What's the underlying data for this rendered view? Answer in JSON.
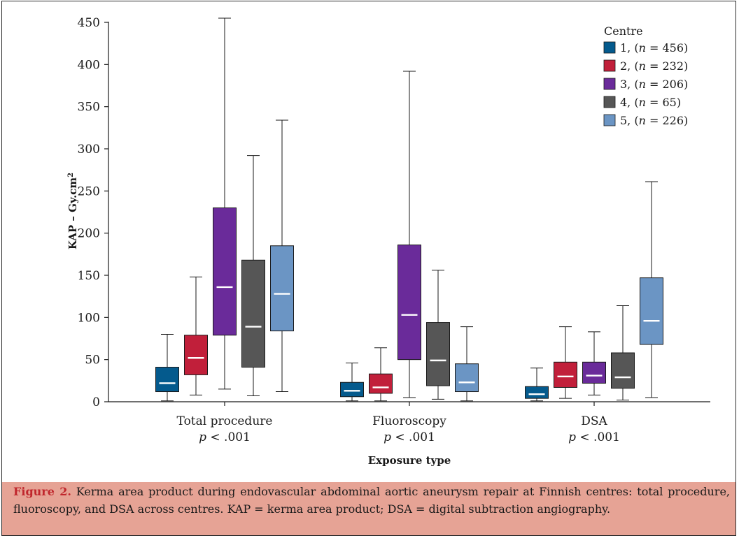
{
  "chart_data": {
    "type": "boxplot",
    "title": "",
    "xlabel": "Exposure type",
    "ylabel": "KAP – Gy.cm",
    "ylabel_superscript": "2",
    "ylim": [
      0,
      450
    ],
    "yticks": [
      0,
      50,
      100,
      150,
      200,
      250,
      300,
      350,
      400,
      450
    ],
    "grid": false,
    "legend": {
      "title": "Centre",
      "placement": "top-right",
      "entries": [
        {
          "num": "1,",
          "n": "456"
        },
        {
          "num": "2,",
          "n": "232"
        },
        {
          "num": "3,",
          "n": "206"
        },
        {
          "num": "4,",
          "n": "65"
        },
        {
          "num": "5,",
          "n": "226"
        }
      ]
    },
    "categories": [
      {
        "label": "Total procedure",
        "p_label": "p",
        "p_value": "< .001"
      },
      {
        "label": "Fluoroscopy",
        "p_label": "p",
        "p_value": "< .001"
      },
      {
        "label": "DSA",
        "p_label": "p",
        "p_value": "< .001"
      }
    ],
    "series": [
      {
        "name": "1, (n = 456)",
        "color": "#045a8d",
        "boxes": [
          {
            "min": 1,
            "q1": 12,
            "median": 22,
            "q3": 41,
            "max": 80
          },
          {
            "min": 1,
            "q1": 6,
            "median": 13,
            "q3": 23,
            "max": 46
          },
          {
            "min": 1,
            "q1": 4,
            "median": 9,
            "q3": 18,
            "max": 40
          }
        ]
      },
      {
        "name": "2, (n = 232)",
        "color": "#c11f3a",
        "boxes": [
          {
            "min": 8,
            "q1": 32,
            "median": 52,
            "q3": 79,
            "max": 148
          },
          {
            "min": 1,
            "q1": 10,
            "median": 17,
            "q3": 33,
            "max": 64
          },
          {
            "min": 4,
            "q1": 17,
            "median": 30,
            "q3": 47,
            "max": 89
          }
        ]
      },
      {
        "name": "3, (n = 206)",
        "color": "#6a2b9a",
        "boxes": [
          {
            "min": 15,
            "q1": 79,
            "median": 136,
            "q3": 230,
            "max": 455
          },
          {
            "min": 5,
            "q1": 50,
            "median": 103,
            "q3": 186,
            "max": 392
          },
          {
            "min": 8,
            "q1": 22,
            "median": 31,
            "q3": 47,
            "max": 83
          }
        ]
      },
      {
        "name": "4, (n = 65)",
        "color": "#565656",
        "boxes": [
          {
            "min": 7,
            "q1": 41,
            "median": 89,
            "q3": 168,
            "max": 292
          },
          {
            "min": 3,
            "q1": 19,
            "median": 49,
            "q3": 94,
            "max": 156
          },
          {
            "min": 2,
            "q1": 16,
            "median": 29,
            "q3": 58,
            "max": 114
          }
        ]
      },
      {
        "name": "5, (n = 226)",
        "color": "#6b95c4",
        "boxes": [
          {
            "min": 12,
            "q1": 84,
            "median": 128,
            "q3": 185,
            "max": 334
          },
          {
            "min": 1,
            "q1": 12,
            "median": 23,
            "q3": 45,
            "max": 89
          },
          {
            "min": 5,
            "q1": 68,
            "median": 96,
            "q3": 147,
            "max": 261
          }
        ]
      }
    ]
  },
  "caption": {
    "label": "Figure 2.",
    "text": " Kerma area product during endovascular abdominal aortic aneurysm repair at Finnish centres: total procedure, fluoroscopy, and DSA across centres. KAP = kerma area product; DSA = digital subtraction angiography."
  }
}
